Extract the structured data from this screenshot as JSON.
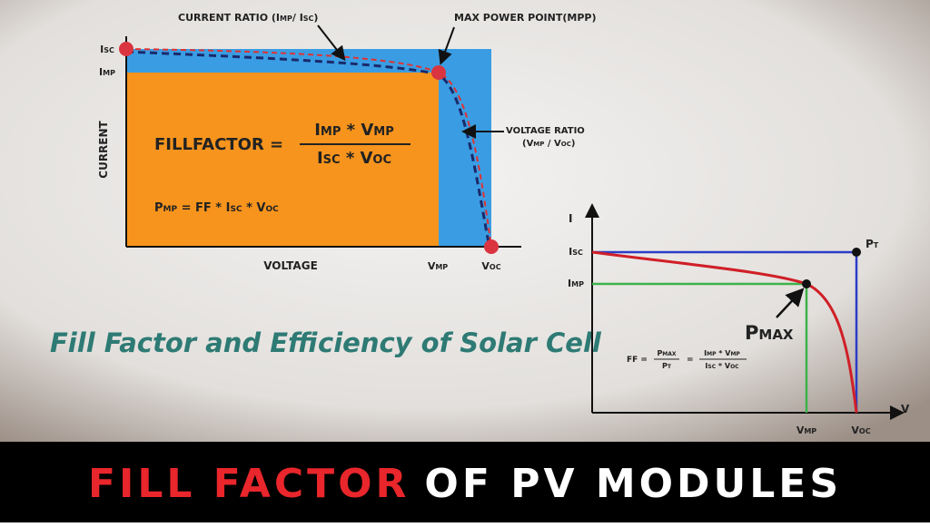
{
  "left_diagram": {
    "annotations": {
      "current_ratio": "CURRENT RATIO (Imp/ Isc)",
      "mpp": "MAX POWER POINT(MPP)",
      "voltage_ratio": "VOLTAGE RATIO",
      "voltage_ratio_formula": "(Vmp / Voc)"
    },
    "y_axis_label": "CURRENT",
    "x_axis_label": "VOLTAGE",
    "y_labels": [
      "Isc",
      "Imp"
    ],
    "x_labels": [
      "Vmp",
      "Voc"
    ],
    "fill_factor": {
      "lhs": "FILLFACTOR =",
      "numerator": "Imp * Vmp",
      "denominator": "Isc * Voc"
    },
    "pmp_formula": "Pmp = FF * Isc * Voc"
  },
  "title": "Fill Factor and Efficiency of Solar Cell",
  "right_diagram": {
    "y_axis_label": "I",
    "x_axis_label": "V",
    "y_labels": [
      "Isc",
      "Imp"
    ],
    "x_labels": [
      "Vmp",
      "Voc"
    ],
    "pt_label": "Pt",
    "pmax_label": "Pmax",
    "ff_formula": {
      "lhs": "FF =",
      "ratio1_num": "Pmax",
      "ratio1_den": "Pt",
      "eq": "=",
      "ratio2_num": "Imp * Vmp",
      "ratio2_den": "Isc * Voc"
    }
  },
  "banner": {
    "highlight": "FILL FACTOR",
    "rest": "OF PV MODULES"
  }
}
